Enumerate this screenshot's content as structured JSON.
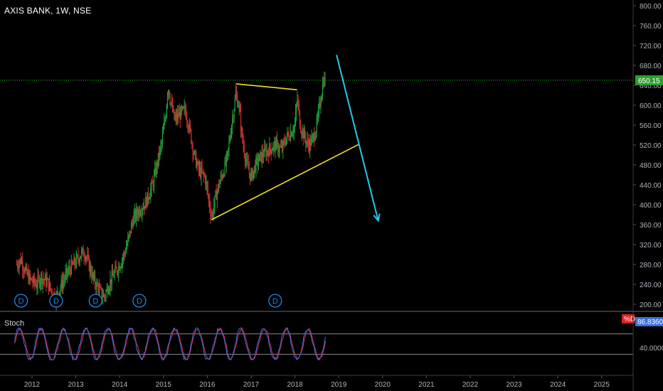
{
  "header": {
    "title": "AXIS BANK, 1W, NSE"
  },
  "colors": {
    "background": "#000000",
    "up_candle": "#1e9e3a",
    "down_candle": "#d03030",
    "price_line": "#22cc22",
    "trendline": "#f0e020",
    "arrow": "#22c8e8",
    "stoch_k": "#3a6fe0",
    "stoch_d": "#e03060",
    "dividend_marker": "#1e88e5"
  },
  "price_axis": {
    "labels": [
      "800.00",
      "760.00",
      "720.00",
      "680.00",
      "640.00",
      "600.00",
      "560.00",
      "520.00",
      "480.00",
      "440.00",
      "400.00",
      "360.00",
      "320.00",
      "280.00",
      "240.00",
      "200.00"
    ]
  },
  "current_price": {
    "label": "650.15",
    "value": 650.15
  },
  "time_axis": {
    "labels": [
      "2012",
      "2013",
      "2014",
      "2015",
      "2016",
      "2017",
      "2018",
      "2019",
      "2020",
      "2021",
      "2022",
      "2023",
      "2024",
      "2025"
    ]
  },
  "dividend_markers": [
    {
      "label": "D",
      "year": 2011.75
    },
    {
      "label": "D",
      "year": 2012.55
    },
    {
      "label": "D",
      "year": 2013.45
    },
    {
      "label": "D",
      "year": 2014.45
    },
    {
      "label": "D",
      "year": 2017.55
    }
  ],
  "indicator": {
    "name": "Stoch",
    "axis_label": "40.0000",
    "badge_d": "%D",
    "badge_value": "86.8360",
    "value": 86.836
  },
  "chart_data": {
    "type": "candlestick",
    "ylim": [
      190,
      810
    ],
    "xlim": [
      2011.6,
      2026.0
    ],
    "price_path": [
      [
        2011.65,
        280
      ],
      [
        2011.75,
        290
      ],
      [
        2011.85,
        265
      ],
      [
        2011.95,
        250
      ],
      [
        2012.1,
        240
      ],
      [
        2012.2,
        255
      ],
      [
        2012.35,
        245
      ],
      [
        2012.45,
        225
      ],
      [
        2012.55,
        215
      ],
      [
        2012.7,
        245
      ],
      [
        2012.85,
        270
      ],
      [
        2013.0,
        285
      ],
      [
        2013.1,
        300
      ],
      [
        2013.2,
        305
      ],
      [
        2013.3,
        280
      ],
      [
        2013.4,
        250
      ],
      [
        2013.55,
        225
      ],
      [
        2013.65,
        215
      ],
      [
        2013.75,
        240
      ],
      [
        2013.9,
        265
      ],
      [
        2014.0,
        280
      ],
      [
        2014.1,
        300
      ],
      [
        2014.2,
        330
      ],
      [
        2014.3,
        370
      ],
      [
        2014.45,
        390
      ],
      [
        2014.6,
        405
      ],
      [
        2014.75,
        440
      ],
      [
        2014.85,
        480
      ],
      [
        2014.95,
        520
      ],
      [
        2015.05,
        580
      ],
      [
        2015.1,
        640
      ],
      [
        2015.18,
        600
      ],
      [
        2015.25,
        570
      ],
      [
        2015.35,
        580
      ],
      [
        2015.5,
        590
      ],
      [
        2015.6,
        550
      ],
      [
        2015.7,
        500
      ],
      [
        2015.8,
        470
      ],
      [
        2015.95,
        455
      ],
      [
        2016.05,
        400
      ],
      [
        2016.1,
        375
      ],
      [
        2016.2,
        420
      ],
      [
        2016.3,
        450
      ],
      [
        2016.45,
        490
      ],
      [
        2016.55,
        560
      ],
      [
        2016.65,
        620
      ],
      [
        2016.72,
        600
      ],
      [
        2016.8,
        530
      ],
      [
        2016.9,
        480
      ],
      [
        2017.0,
        455
      ],
      [
        2017.1,
        480
      ],
      [
        2017.25,
        500
      ],
      [
        2017.4,
        510
      ],
      [
        2017.55,
        520
      ],
      [
        2017.7,
        510
      ],
      [
        2017.8,
        535
      ],
      [
        2017.9,
        545
      ],
      [
        2018.0,
        560
      ],
      [
        2018.05,
        615
      ],
      [
        2018.12,
        560
      ],
      [
        2018.2,
        540
      ],
      [
        2018.3,
        520
      ],
      [
        2018.4,
        530
      ],
      [
        2018.5,
        560
      ],
      [
        2018.58,
        610
      ],
      [
        2018.65,
        650
      ],
      [
        2018.7,
        650
      ]
    ],
    "annotations": {
      "trendlines": [
        {
          "from": [
            2016.1,
            370
          ],
          "to": [
            2019.45,
            521
          ]
        },
        {
          "from": [
            2016.65,
            643
          ],
          "to": [
            2018.05,
            631
          ]
        }
      ],
      "projection_arrow": {
        "from": [
          2018.95,
          701
        ],
        "to": [
          2019.9,
          368
        ]
      },
      "horizontal_line": 650.15
    },
    "stoch_ylim": [
      0,
      100
    ]
  }
}
